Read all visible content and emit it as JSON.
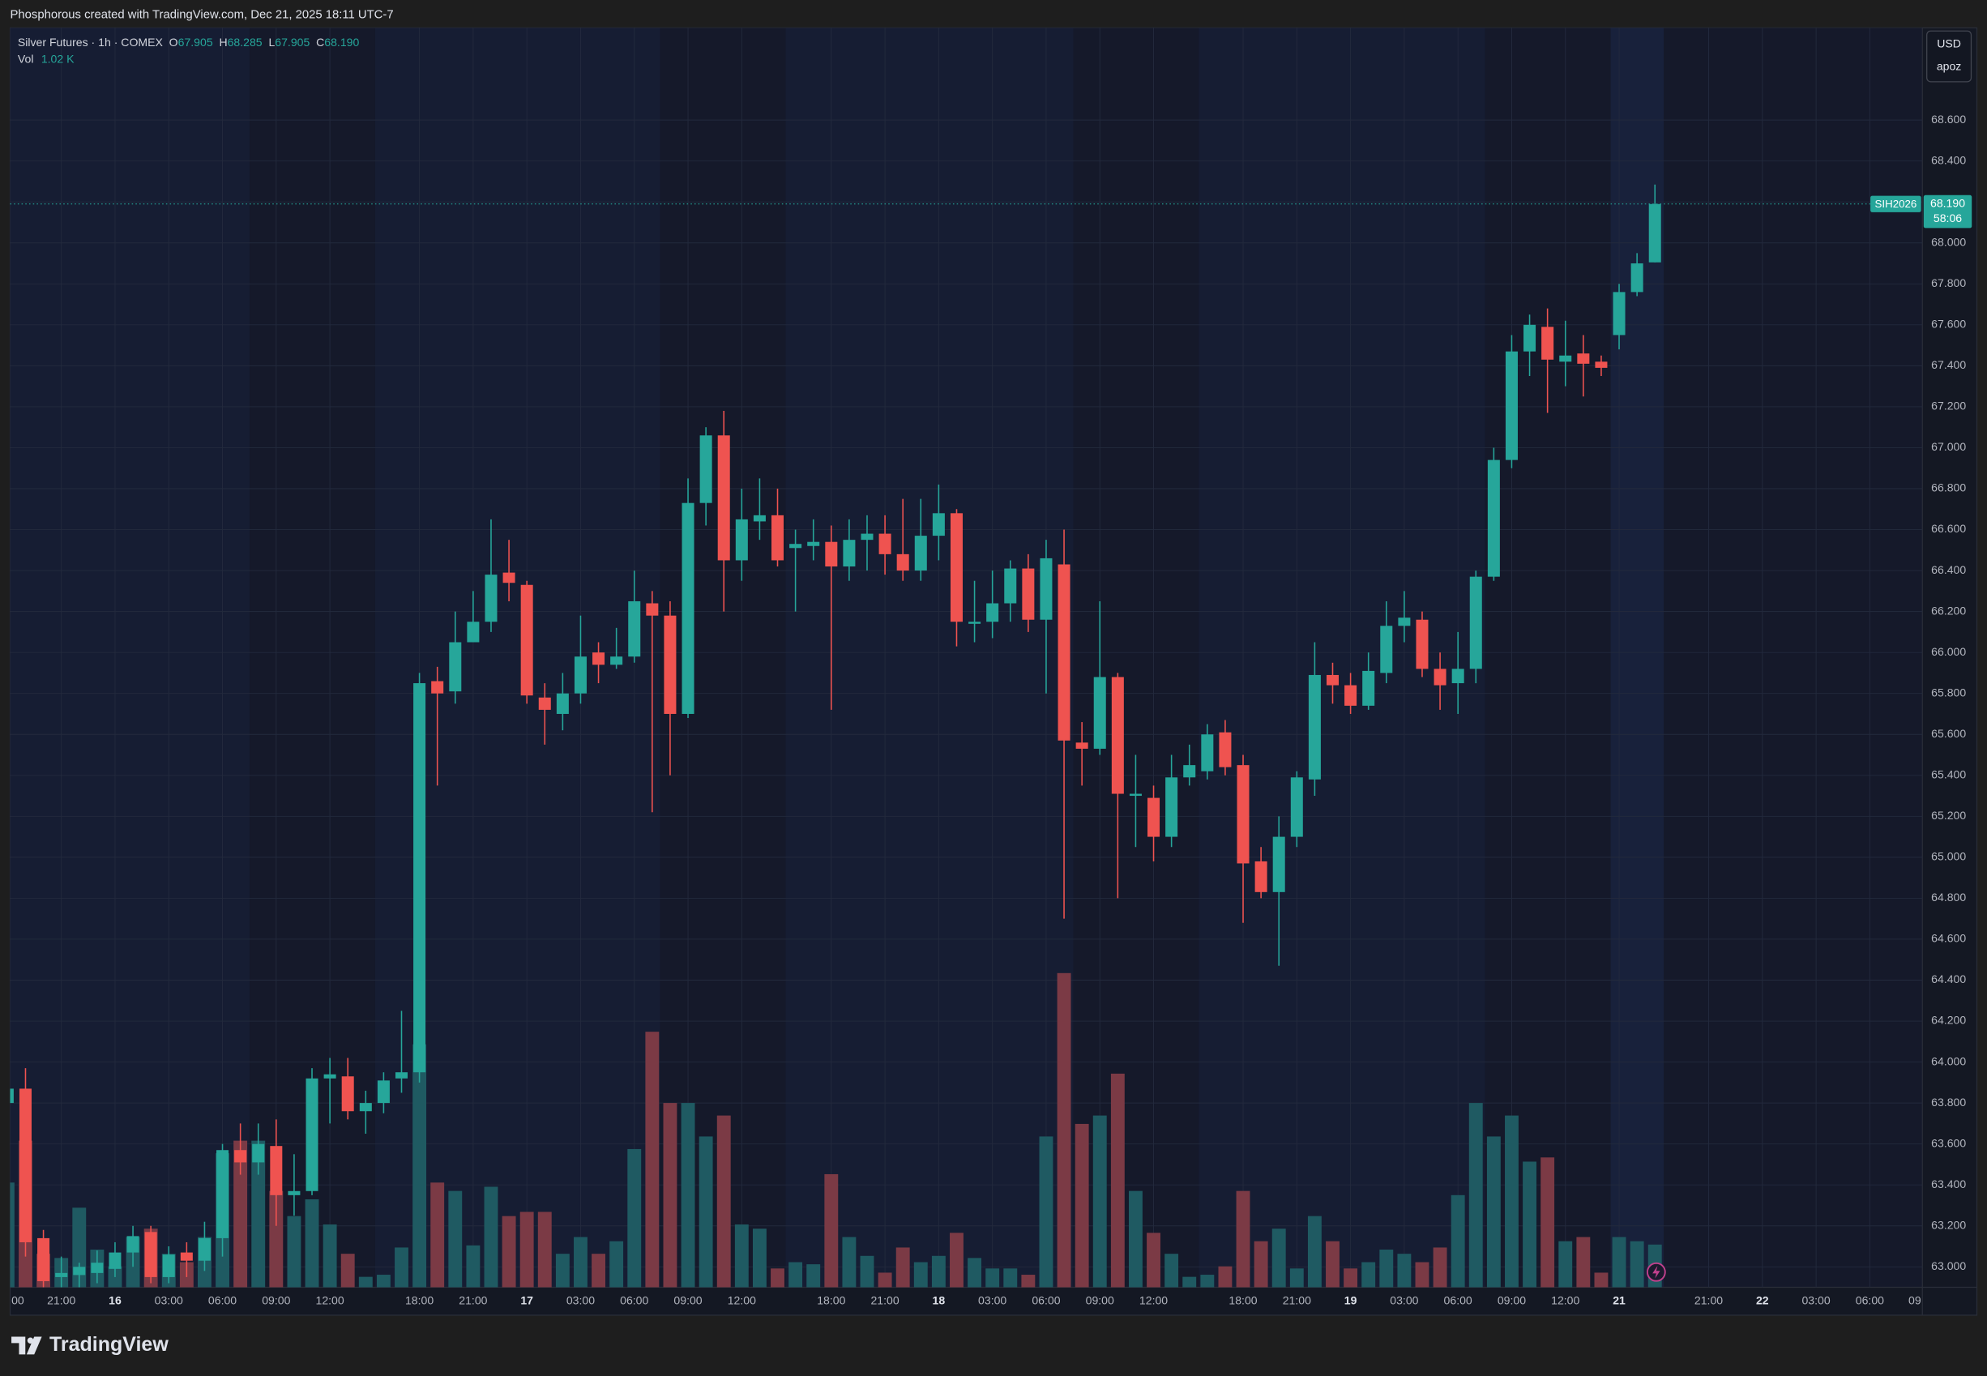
{
  "chart_data": {
    "type": "candlestick",
    "caption": "Phosphorous created with TradingView.com, Dec 21, 2025 18:11 UTC-7",
    "legend": {
      "symbol": "Silver Futures · 1h · COMEX",
      "o_label": "O",
      "open": "67.905",
      "h_label": "H",
      "high": "68.285",
      "l_label": "L",
      "low": "67.905",
      "c_label": "C",
      "close": "68.190",
      "vol_label": "Vol",
      "volume": "1.02 K"
    },
    "currency": "USD",
    "scale_label": "apoz",
    "last_price": {
      "symbol": "SIH2026",
      "label": "68.190",
      "countdown": "58:06"
    },
    "brand": "TradingView",
    "up_color": "#26a69a",
    "down_color": "#ef5350",
    "volume_up_color": "#1f5a62",
    "volume_down_color": "#7b3a45",
    "grid": true,
    "categories": [
      "00",
      null,
      null,
      "21:00",
      null,
      null,
      "16",
      null,
      null,
      "03:00",
      null,
      null,
      "06:00",
      null,
      null,
      "09:00",
      null,
      null,
      "12:00",
      null,
      null,
      null,
      null,
      "18:00",
      null,
      null,
      "21:00",
      null,
      null,
      "17",
      null,
      null,
      "03:00",
      null,
      null,
      "06:00",
      null,
      null,
      "09:00",
      null,
      null,
      "12:00",
      null,
      null,
      null,
      null,
      "18:00",
      null,
      null,
      "21:00",
      null,
      null,
      "18",
      null,
      null,
      "03:00",
      null,
      null,
      "06:00",
      null,
      null,
      "09:00",
      null,
      null,
      "12:00",
      null,
      null,
      null,
      null,
      "18:00",
      null,
      null,
      "21:00",
      null,
      null,
      "19",
      null,
      null,
      "03:00",
      null,
      null,
      "06:00",
      null,
      null,
      "09:00",
      null,
      null,
      "12:00",
      null,
      null,
      "21",
      null,
      null,
      null,
      null,
      "21:00",
      null,
      null,
      "22",
      null,
      null,
      "03:00",
      null,
      null,
      "06:00",
      null,
      null,
      "09"
    ],
    "open": [
      63.8,
      63.87,
      63.14,
      62.95,
      62.96,
      62.97,
      62.99,
      63.07,
      63.17,
      62.95,
      63.07,
      63.03,
      63.14,
      63.57,
      63.51,
      63.59,
      63.35,
      63.37,
      63.92,
      63.93,
      63.76,
      63.8,
      63.92,
      63.95,
      65.86,
      65.81,
      66.05,
      66.15,
      66.39,
      66.33,
      65.78,
      65.7,
      65.8,
      66.0,
      65.94,
      65.98,
      66.24,
      66.18,
      65.7,
      66.73,
      67.06,
      66.45,
      66.64,
      66.67,
      66.51,
      66.52,
      66.54,
      66.42,
      66.55,
      66.58,
      66.48,
      66.4,
      66.57,
      66.68,
      66.14,
      66.15,
      66.24,
      66.41,
      66.16,
      66.43,
      65.56,
      65.53,
      65.88,
      65.3,
      65.29,
      65.1,
      65.39,
      65.42,
      65.61,
      65.45,
      64.98,
      64.83,
      65.1,
      65.38,
      65.89,
      65.84,
      65.74,
      65.9,
      66.13,
      66.16,
      65.92,
      65.85,
      65.92,
      66.37,
      66.94,
      67.47,
      67.59,
      67.42,
      67.46,
      67.42,
      67.55,
      67.76,
      67.905,
      null,
      null,
      null,
      null,
      null,
      null,
      null,
      null,
      null,
      null,
      null,
      null,
      null,
      null,
      null
    ],
    "high": [
      63.9,
      63.97,
      63.18,
      63.05,
      63.02,
      63.08,
      63.12,
      63.2,
      63.2,
      63.1,
      63.12,
      63.22,
      63.6,
      63.7,
      63.7,
      63.72,
      63.55,
      63.97,
      64.02,
      64.02,
      63.86,
      63.95,
      64.25,
      65.9,
      65.93,
      66.2,
      66.3,
      66.65,
      66.55,
      66.35,
      65.85,
      65.9,
      66.18,
      66.05,
      66.12,
      66.4,
      66.3,
      66.25,
      66.85,
      67.1,
      67.18,
      66.8,
      66.85,
      66.8,
      66.6,
      66.65,
      66.62,
      66.65,
      66.67,
      66.67,
      66.75,
      66.75,
      66.82,
      66.7,
      66.35,
      66.4,
      66.45,
      66.48,
      66.55,
      66.6,
      65.66,
      66.25,
      65.9,
      65.5,
      65.35,
      65.5,
      65.55,
      65.65,
      65.67,
      65.5,
      65.05,
      65.2,
      65.42,
      66.05,
      65.95,
      65.9,
      66.0,
      66.25,
      66.3,
      66.2,
      66.0,
      66.1,
      66.4,
      67.0,
      67.55,
      67.65,
      67.68,
      67.62,
      67.55,
      67.45,
      67.8,
      67.95,
      68.285,
      null,
      null,
      null,
      null,
      null,
      null,
      null,
      null,
      null,
      null,
      null,
      null,
      null,
      null,
      null
    ],
    "low": [
      63.78,
      63.05,
      62.9,
      62.9,
      62.9,
      62.92,
      62.95,
      63.0,
      62.92,
      62.92,
      62.95,
      62.98,
      63.05,
      63.45,
      63.45,
      63.2,
      63.25,
      63.35,
      63.7,
      63.72,
      63.65,
      63.75,
      63.85,
      63.9,
      65.35,
      65.75,
      66.05,
      66.1,
      66.25,
      65.75,
      65.55,
      65.62,
      65.75,
      65.85,
      65.92,
      65.95,
      65.22,
      65.4,
      65.68,
      66.62,
      66.2,
      66.35,
      66.55,
      66.42,
      66.2,
      66.45,
      65.72,
      66.35,
      66.4,
      66.38,
      66.35,
      66.35,
      66.45,
      66.03,
      66.05,
      66.07,
      66.15,
      66.1,
      65.8,
      64.7,
      65.35,
      65.5,
      64.8,
      65.05,
      64.98,
      65.05,
      65.35,
      65.38,
      65.4,
      64.68,
      64.8,
      64.47,
      65.05,
      65.3,
      65.75,
      65.7,
      65.72,
      65.85,
      66.05,
      65.88,
      65.72,
      65.7,
      65.85,
      66.35,
      66.9,
      67.35,
      67.17,
      67.3,
      67.25,
      67.35,
      67.48,
      67.74,
      67.905,
      null,
      null,
      null,
      null,
      null,
      null,
      null,
      null,
      null,
      null,
      null,
      null,
      null,
      null,
      null
    ],
    "close": [
      63.87,
      63.12,
      62.93,
      62.97,
      63.0,
      63.02,
      63.07,
      63.15,
      62.95,
      63.06,
      63.03,
      63.14,
      63.57,
      63.51,
      63.6,
      63.35,
      63.37,
      63.92,
      63.94,
      63.76,
      63.8,
      63.91,
      63.95,
      65.85,
      65.8,
      66.05,
      66.15,
      66.38,
      66.34,
      65.79,
      65.72,
      65.8,
      65.98,
      65.94,
      65.98,
      66.25,
      66.18,
      65.7,
      66.73,
      67.06,
      66.45,
      66.65,
      66.67,
      66.45,
      66.53,
      66.54,
      66.42,
      66.55,
      66.58,
      66.48,
      66.4,
      66.57,
      66.68,
      66.15,
      66.15,
      66.24,
      66.41,
      66.16,
      66.46,
      65.57,
      65.53,
      65.88,
      65.31,
      65.31,
      65.1,
      65.39,
      65.45,
      65.6,
      65.44,
      64.97,
      64.83,
      65.1,
      65.39,
      65.89,
      65.84,
      65.74,
      65.91,
      66.13,
      66.17,
      65.92,
      65.84,
      65.92,
      66.37,
      66.94,
      67.47,
      67.6,
      67.43,
      67.45,
      67.41,
      67.39,
      67.76,
      67.9,
      68.19,
      null,
      null,
      null,
      null,
      null,
      null,
      null,
      null,
      null,
      null,
      null,
      null,
      null,
      null,
      null
    ],
    "volume": [
      2.5,
      3.5,
      0.8,
      0.7,
      1.9,
      0.9,
      0.5,
      1.2,
      1.4,
      0.8,
      0.6,
      1.2,
      3.2,
      3.5,
      3.5,
      2.3,
      1.7,
      2.1,
      1.5,
      0.8,
      0.25,
      0.3,
      0.95,
      5.8,
      2.5,
      2.3,
      1.0,
      2.4,
      1.7,
      1.8,
      1.8,
      0.8,
      1.2,
      0.8,
      1.1,
      3.3,
      6.1,
      4.4,
      4.4,
      3.6,
      4.1,
      1.5,
      1.4,
      0.45,
      0.6,
      0.55,
      2.7,
      1.2,
      0.75,
      0.35,
      0.95,
      0.6,
      0.75,
      1.3,
      0.7,
      0.45,
      0.45,
      0.3,
      3.6,
      7.5,
      3.9,
      4.1,
      5.1,
      2.3,
      1.3,
      0.8,
      0.25,
      0.3,
      0.5,
      2.3,
      1.1,
      1.4,
      0.45,
      1.7,
      1.1,
      0.45,
      0.6,
      0.9,
      0.8,
      0.6,
      0.95,
      2.2,
      4.4,
      3.6,
      4.1,
      3.0,
      3.1,
      1.1,
      1.2,
      0.35,
      1.2,
      1.1,
      1.02,
      null,
      null,
      null,
      null,
      null,
      null,
      null,
      null,
      null,
      null,
      null,
      null,
      null,
      null,
      null
    ],
    "ylim": [
      62.9,
      69.05
    ],
    "yticks": [
      {
        "value": 63.0,
        "label": "63.000"
      },
      {
        "value": 63.2,
        "label": "63.200"
      },
      {
        "value": 63.4,
        "label": "63.400"
      },
      {
        "value": 63.6,
        "label": "63.600"
      },
      {
        "value": 63.8,
        "label": "63.800"
      },
      {
        "value": 64.0,
        "label": "64.000"
      },
      {
        "value": 64.2,
        "label": "64.200"
      },
      {
        "value": 64.4,
        "label": "64.400"
      },
      {
        "value": 64.6,
        "label": "64.600"
      },
      {
        "value": 64.8,
        "label": "64.800"
      },
      {
        "value": 65.0,
        "label": "65.000"
      },
      {
        "value": 65.2,
        "label": "65.200"
      },
      {
        "value": 65.4,
        "label": "65.400"
      },
      {
        "value": 65.6,
        "label": "65.600"
      },
      {
        "value": 65.8,
        "label": "65.800"
      },
      {
        "value": 66.0,
        "label": "66.000"
      },
      {
        "value": 66.2,
        "label": "66.200"
      },
      {
        "value": 66.4,
        "label": "66.400"
      },
      {
        "value": 66.6,
        "label": "66.600"
      },
      {
        "value": 66.8,
        "label": "66.800"
      },
      {
        "value": 67.0,
        "label": "67.000"
      },
      {
        "value": 67.2,
        "label": "67.200"
      },
      {
        "value": 67.4,
        "label": "67.400"
      },
      {
        "value": 67.6,
        "label": "67.600"
      },
      {
        "value": 67.8,
        "label": "67.800"
      },
      {
        "value": 68.0,
        "label": "68.000"
      },
      {
        "value": 68.2,
        "label": "68.200"
      },
      {
        "value": 68.4,
        "label": "68.400"
      },
      {
        "value": 68.6,
        "label": "68.600"
      }
    ]
  }
}
